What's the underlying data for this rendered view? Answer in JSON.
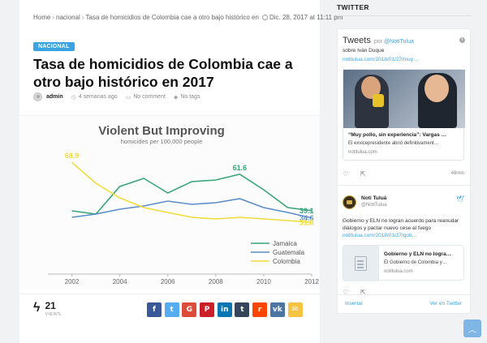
{
  "breadcrumb": {
    "home": "Home",
    "category": "nacional",
    "current": "Tasa de homicidios de Colombia cae a otro bajo histórico en",
    "date": "Dic. 28, 2017 at 11:11 pm"
  },
  "article": {
    "category_badge": "NACIONAL",
    "title": "Tasa de homicidios de Colombia cae a otro bajo histórico en 2017",
    "author": "admin",
    "time_ago": "4 semanas ago",
    "comments": "No comment",
    "tags": "No tags"
  },
  "chart_data": {
    "type": "line",
    "title": "Violent But Improving",
    "subtitle": "homicides per 100,000 people",
    "x": [
      2001,
      2002,
      2003,
      2004,
      2005,
      2006,
      2007,
      2008,
      2009,
      2010,
      2011,
      2012
    ],
    "xticks": [
      2002,
      2004,
      2006,
      2008,
      2010,
      2012
    ],
    "ylim": [
      0,
      75
    ],
    "series": [
      {
        "name": "Jamaica",
        "color": "#3aa57a",
        "values": [
          null,
          39.0,
          37.0,
          54.0,
          59.0,
          50.0,
          57.0,
          58.0,
          61.6,
          52.0,
          41.0,
          39.1
        ],
        "label": "61.6",
        "end_label": "39.1"
      },
      {
        "name": "Guatemala",
        "color": "#5b8ec9",
        "values": [
          null,
          35.0,
          37.0,
          40.0,
          42.0,
          45.0,
          43.0,
          44.0,
          46.5,
          41.0,
          38.0,
          34.6
        ],
        "end_label": "34.6"
      },
      {
        "name": "Colombia",
        "color": "#f0dc3a",
        "values": [
          null,
          68.9,
          56.0,
          47.0,
          41.0,
          38.0,
          35.0,
          34.0,
          35.0,
          34.0,
          33.0,
          31.8
        ],
        "label": "68.9",
        "end_label": "31.8"
      }
    ],
    "legend": "bottom-right"
  },
  "share": {
    "count": "21",
    "count_label": "VIEWS",
    "buttons": [
      {
        "name": "facebook",
        "glyph": "f",
        "color": "#3b5998"
      },
      {
        "name": "twitter",
        "glyph": "t",
        "color": "#55acee"
      },
      {
        "name": "google-plus",
        "glyph": "G",
        "color": "#dd4b39"
      },
      {
        "name": "pinterest",
        "glyph": "P",
        "color": "#cb2027"
      },
      {
        "name": "linkedin",
        "glyph": "in",
        "color": "#0976b4"
      },
      {
        "name": "tumblr",
        "glyph": "t",
        "color": "#35465c"
      },
      {
        "name": "reddit",
        "glyph": "r",
        "color": "#ff4500"
      },
      {
        "name": "vk",
        "glyph": "vk",
        "color": "#4c75a3"
      },
      {
        "name": "email",
        "glyph": "✉",
        "color": "#f6c343"
      }
    ]
  },
  "sidebar": {
    "heading": "TWITTER",
    "widget_title": "Tweets",
    "by": "por",
    "by_handle": "@NotiTulua",
    "tweet1": {
      "text": "sobre Iván Duque",
      "link": "notitulua.com/2018/01/27/muy…",
      "card_title": "“Muy pollo, sin experiencia”: Vargas …",
      "card_desc": "El exvicepresidente abrió definitivament…",
      "card_url": "notitulua.com",
      "time": "48min"
    },
    "tweet2": {
      "name": "Noti Tuluá",
      "handle": "@NotiTulua",
      "text": "Gobierno y ELN no logran acuerdo para reanudar diálogos y pactar nuevo cese al fuego",
      "link": "notitulua.com/2018/01/27/gob…",
      "card_title": "Gobierno y ELN no logra…",
      "card_desc": "El Gobierno de Colombia y…",
      "card_url": "notitulua.com"
    },
    "insert": "Insertar",
    "view_on": "Ver en Twitter"
  }
}
